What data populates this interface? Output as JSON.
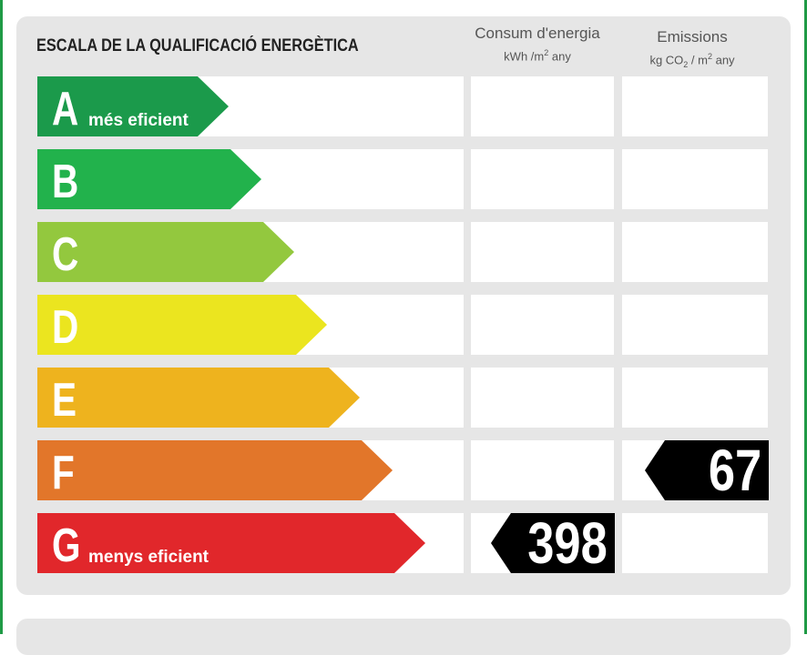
{
  "title": "ESCALA DE LA QUALIFICACIÓ ENERGÈTICA",
  "columns": {
    "consumption": {
      "label": "Consum d'energia",
      "unit_pre": "kWh /m",
      "unit_exp": "2",
      "unit_post": "  any"
    },
    "emissions": {
      "label": "Emissions",
      "unit_pre": "kg CO",
      "unit_sub": "2",
      "unit_mid": "  / m",
      "unit_exp": "2",
      "unit_post": "  any"
    }
  },
  "classes": [
    {
      "letter": "A",
      "label": "més eficient",
      "color": "#1b9a4b"
    },
    {
      "letter": "B",
      "label": "",
      "color": "#22b24c"
    },
    {
      "letter": "C",
      "label": "",
      "color": "#93c83e"
    },
    {
      "letter": "D",
      "label": "",
      "color": "#ebe51f"
    },
    {
      "letter": "E",
      "label": "",
      "color": "#eeb31e"
    },
    {
      "letter": "F",
      "label": "",
      "color": "#e2762a"
    },
    {
      "letter": "G",
      "label": "menys eficient",
      "color": "#e1272b"
    }
  ],
  "rating": {
    "consumption": {
      "value": "398",
      "class": "G"
    },
    "emissions": {
      "value": "67",
      "class": "F"
    }
  }
}
